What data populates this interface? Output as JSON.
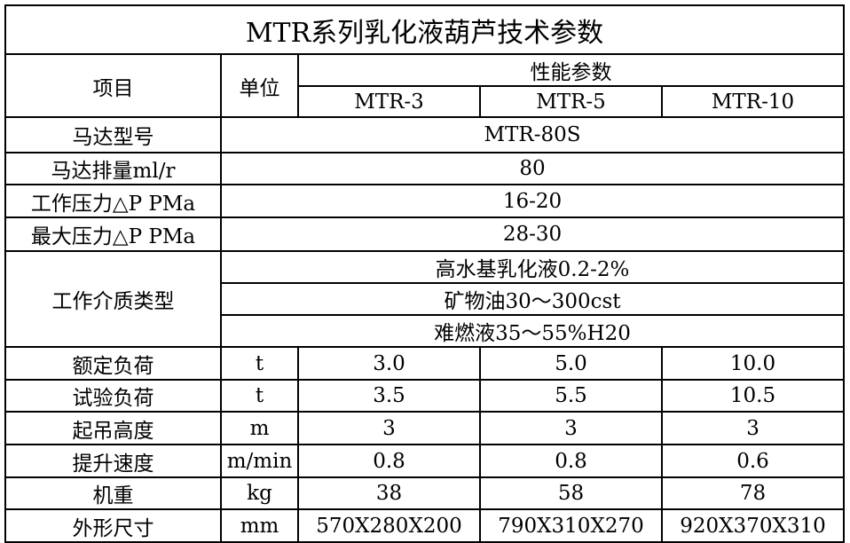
{
  "title": "MTR系列乳化液葫芦技术参数",
  "header": {
    "item": "项目",
    "unit": "单位",
    "group": "性能参数",
    "models": [
      "MTR-3",
      "MTR-5",
      "MTR-10"
    ]
  },
  "shared_rows": [
    {
      "label": "马达型号",
      "value": "MTR-80S"
    },
    {
      "label": "马达排量ml/r",
      "value": "80"
    },
    {
      "label": "工作压力△P PMa",
      "value": "16-20"
    },
    {
      "label": "最大压力△P PMa",
      "value": "28-30"
    }
  ],
  "medium": {
    "label": "工作介质类型",
    "values": [
      "高水基乳化液0.2-2%",
      "矿物油30～300cst",
      "难燃液35～55%H20"
    ]
  },
  "rows": [
    {
      "label": "额定负荷",
      "unit": "t",
      "values": [
        "3.0",
        "5.0",
        "10.0"
      ]
    },
    {
      "label": "试验负荷",
      "unit": "t",
      "values": [
        "3.5",
        "5.5",
        "10.5"
      ]
    },
    {
      "label": "起吊高度",
      "unit": "m",
      "values": [
        "3",
        "3",
        "3"
      ]
    },
    {
      "label": "提升速度",
      "unit": "m/min",
      "values": [
        "0.8",
        "0.8",
        "0.6"
      ]
    },
    {
      "label": "机重",
      "unit": "kg",
      "values": [
        "38",
        "58",
        "78"
      ]
    },
    {
      "label": "外形尺寸",
      "unit": "mm",
      "values": [
        "570X280X200",
        "790X310X270",
        "920X370X310"
      ]
    }
  ]
}
